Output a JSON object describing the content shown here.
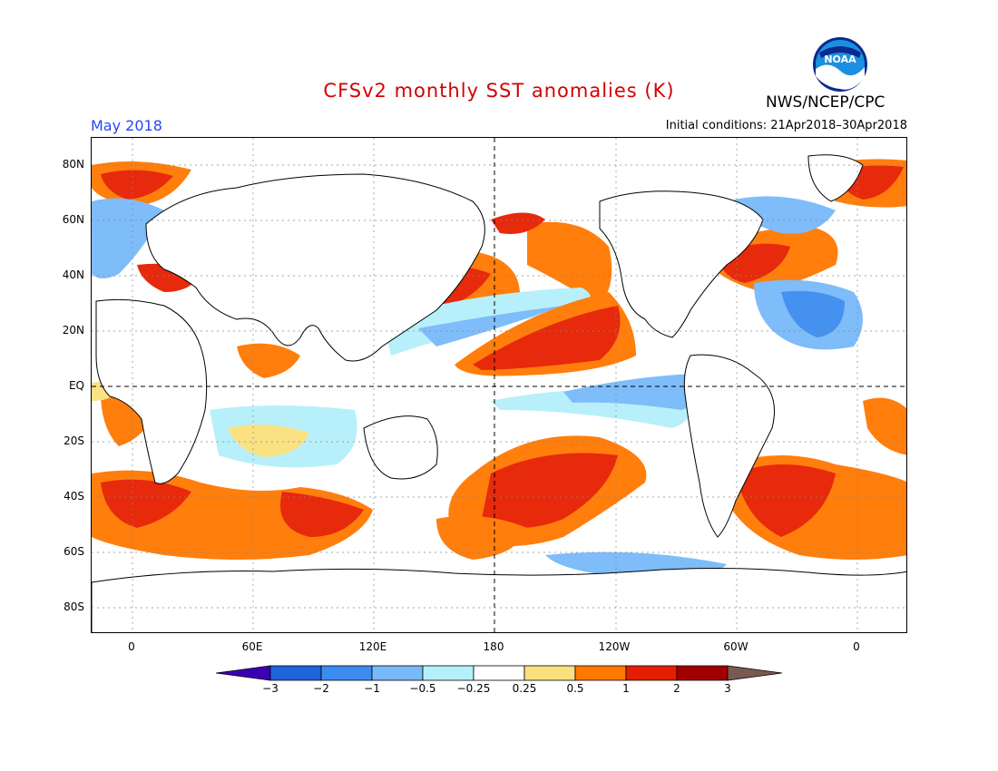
{
  "title": "CFSv2 monthly SST anomalies (K)",
  "agency": "NWS/NCEP/CPC",
  "logo_text": "NOAA",
  "month": "May 2018",
  "initial_conditions": "Initial conditions: 21Apr2018–30Apr2018",
  "lat_labels": [
    "80N",
    "60N",
    "40N",
    "20N",
    "EQ",
    "20S",
    "40S",
    "60S",
    "80S"
  ],
  "lon_labels": [
    "0",
    "60E",
    "120E",
    "180",
    "120W",
    "60W",
    "0"
  ],
  "colorbar": {
    "levels": [
      "−3",
      "−2",
      "−1",
      "−0.5",
      "−0.25",
      "0.25",
      "0.5",
      "1",
      "2",
      "3"
    ],
    "colors": [
      "#3c00b4",
      "#1e64dc",
      "#3c8cf0",
      "#78b9fa",
      "#b4f0fa",
      "#ffffff",
      "#fae17d",
      "#ff7800",
      "#e61e00",
      "#a00000",
      "#7a5a50"
    ]
  }
}
